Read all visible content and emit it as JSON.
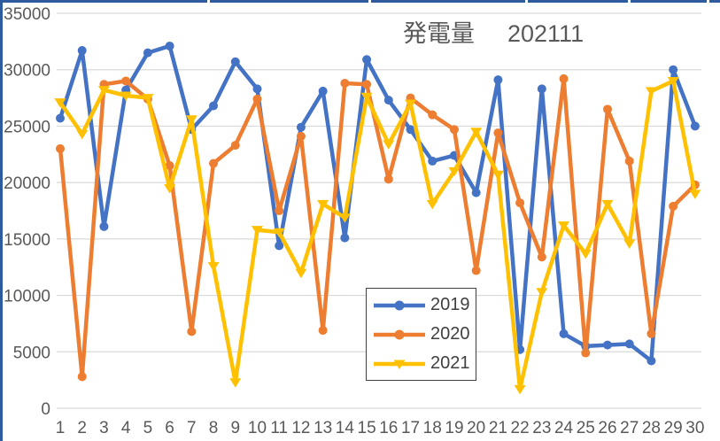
{
  "colors": {
    "frame": "#2E5B9E",
    "gridline": "#D9D9D9",
    "axis_text": "#595959",
    "title": "#595959",
    "legend_border": "#404040",
    "background": "#FFFFFF",
    "series_blue": "#4472C4",
    "series_orange": "#ED7D31",
    "series_yellow": "#FFC000"
  },
  "chart_data": {
    "type": "line",
    "title": "発電量",
    "period": "202111",
    "grid": true,
    "legend_position": "inside-bottom-center-box",
    "ylim": [
      0,
      35000
    ],
    "yticks": [
      35000,
      30000,
      25000,
      20000,
      15000,
      10000,
      5000,
      0
    ],
    "x": [
      "1",
      "2",
      "3",
      "4",
      "5",
      "6",
      "7",
      "8",
      "9",
      "10",
      "11",
      "12",
      "13",
      "14",
      "15",
      "16",
      "17",
      "18",
      "19",
      "20",
      "21",
      "22",
      "23",
      "24",
      "25",
      "26",
      "27",
      "28",
      "29",
      "30"
    ],
    "series": [
      {
        "name": "2019",
        "color": "#4472C4",
        "marker": "circle",
        "values": [
          25700,
          31700,
          16100,
          28200,
          31500,
          32100,
          24700,
          26800,
          30700,
          28300,
          14400,
          24900,
          28100,
          15100,
          30900,
          27300,
          24700,
          21900,
          22400,
          19100,
          29100,
          5200,
          28300,
          6600,
          5500,
          5600,
          5700,
          4200,
          30000,
          25000
        ]
      },
      {
        "name": "2020",
        "color": "#ED7D31",
        "marker": "circle",
        "values": [
          23000,
          2800,
          28700,
          29000,
          27400,
          21500,
          6800,
          21700,
          23300,
          27400,
          17500,
          24100,
          6900,
          28800,
          28700,
          20300,
          27500,
          26000,
          24700,
          12200,
          24400,
          18200,
          13400,
          29200,
          4900,
          26500,
          21900,
          6600,
          17900,
          19800
        ]
      },
      {
        "name": "2021",
        "color": "#FFC000",
        "marker": "triangle-down",
        "values": [
          27100,
          24300,
          28200,
          27700,
          27500,
          19500,
          25600,
          12600,
          2300,
          15800,
          15600,
          12000,
          18100,
          16900,
          27600,
          23400,
          27000,
          18100,
          21000,
          24500,
          20700,
          1700,
          10300,
          16200,
          13700,
          18100,
          14600,
          28100,
          29000,
          19000
        ]
      }
    ]
  }
}
